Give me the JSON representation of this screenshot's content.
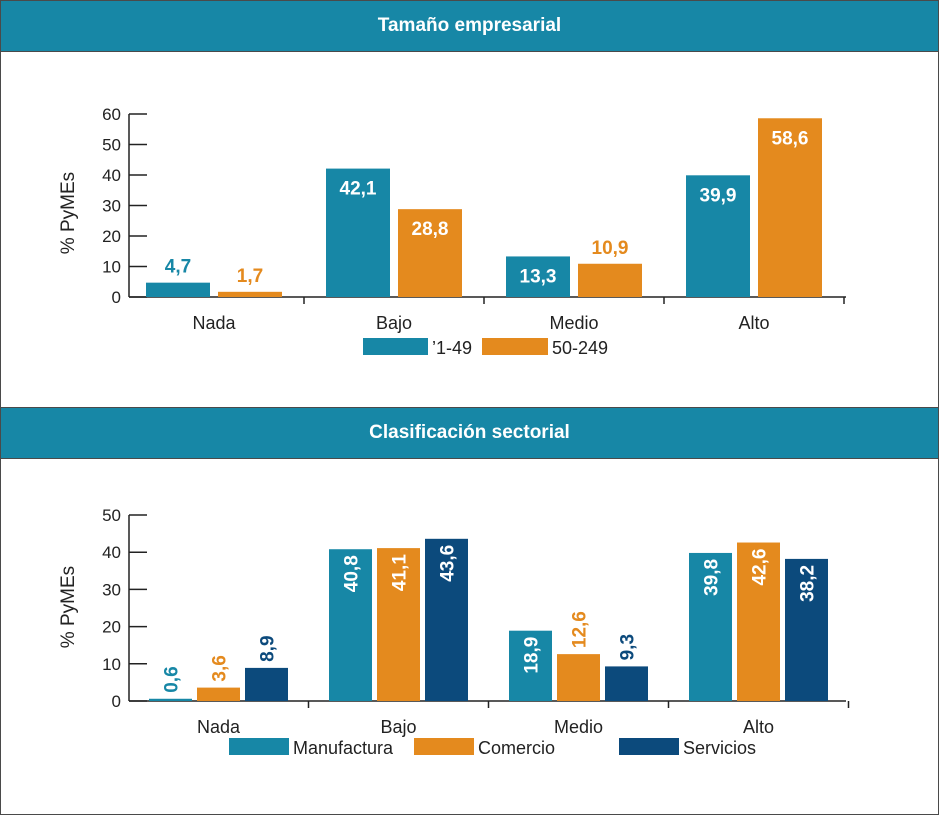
{
  "panels": [
    {
      "title": "Tamaño empresarial"
    },
    {
      "title": "Clasificación sectorial"
    }
  ],
  "chart_data": [
    {
      "type": "bar",
      "title": "Tamaño empresarial",
      "ylabel": "% PyMEs",
      "xlabel": "",
      "categories": [
        "Nada",
        "Bajo",
        "Medio",
        "Alto"
      ],
      "ylim": [
        0,
        60
      ],
      "yticks": [
        0,
        10,
        20,
        30,
        40,
        50,
        60
      ],
      "legend_position": "bottom",
      "series": [
        {
          "name": "’1-49",
          "color": "#1787a6",
          "values": [
            4.7,
            42.1,
            13.3,
            39.9
          ],
          "labels": [
            "4,7",
            "42,1",
            "13,3",
            "39,9"
          ]
        },
        {
          "name": "50-249",
          "color": "#e48a1e",
          "values": [
            1.7,
            28.8,
            10.9,
            58.6
          ],
          "labels": [
            "1,7",
            "28,8",
            "10,9",
            "58,6"
          ]
        }
      ]
    },
    {
      "type": "bar",
      "title": "Clasificación sectorial",
      "ylabel": "% PyMEs",
      "xlabel": "",
      "categories": [
        "Nada",
        "Bajo",
        "Medio",
        "Alto"
      ],
      "ylim": [
        0,
        50
      ],
      "yticks": [
        0,
        10,
        20,
        30,
        40,
        50
      ],
      "legend_position": "bottom",
      "series": [
        {
          "name": "Manufactura",
          "color": "#1787a6",
          "values": [
            0.6,
            40.8,
            18.9,
            39.8
          ],
          "labels": [
            "0,6",
            "40,8",
            "18,9",
            "39,8"
          ]
        },
        {
          "name": "Comercio",
          "color": "#e48a1e",
          "values": [
            3.6,
            41.1,
            12.6,
            42.6
          ],
          "labels": [
            "3,6",
            "41,1",
            "12,6",
            "42,6"
          ]
        },
        {
          "name": "Servicios",
          "color": "#0c4a7c",
          "values": [
            8.9,
            43.6,
            9.3,
            38.2
          ],
          "labels": [
            "8,9",
            "43,6",
            "9,3",
            "38,2"
          ]
        }
      ]
    }
  ]
}
